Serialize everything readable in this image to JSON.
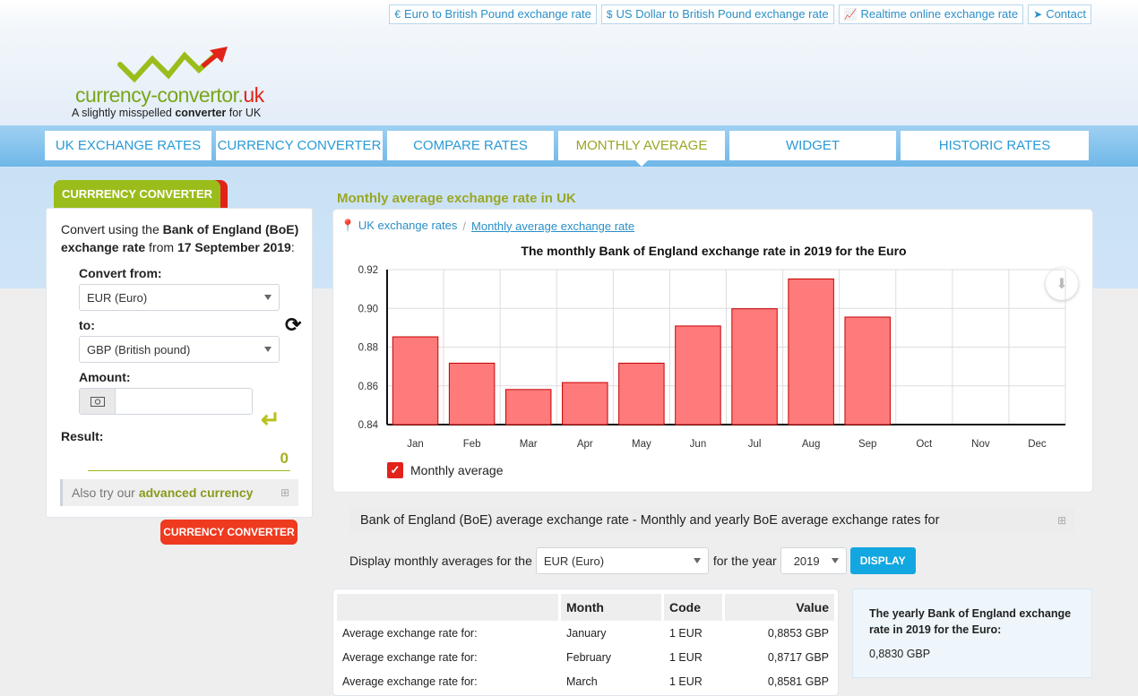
{
  "top_links": [
    {
      "icon": "euro-icon",
      "glyph": "€",
      "label": "Euro to British Pound exchange rate"
    },
    {
      "icon": "dollar-icon",
      "glyph": "$",
      "label": "US Dollar to British Pound exchange rate"
    },
    {
      "icon": "line-chart-icon",
      "glyph": "📈",
      "label": "Realtime online exchange rate"
    },
    {
      "icon": "paper-plane-icon",
      "glyph": "➤",
      "label": "Contact"
    }
  ],
  "logo": {
    "name_main": "currency-convertor.",
    "name_tld": "uk",
    "tagline_pre": "A slightly misspelled ",
    "tagline_bold": "converter",
    "tagline_post": " for UK"
  },
  "nav": [
    {
      "label": "UK EXCHANGE RATES",
      "active": false
    },
    {
      "label": "CURRENCY CONVERTER",
      "active": false
    },
    {
      "label": "COMPARE RATES",
      "active": false
    },
    {
      "label": "MONTHLY AVERAGE",
      "active": true
    },
    {
      "label": "WIDGET",
      "active": false
    },
    {
      "label": "HISTORIC RATES",
      "active": false
    }
  ],
  "sidebar": {
    "tab_label": "CURRRENCY CONVERTER",
    "intro_pre": "Convert using the ",
    "intro_bold1": "Bank of England (BoE) exchange rate",
    "intro_mid": " from ",
    "intro_bold2": "17 September 2019",
    "intro_post": ":",
    "from_label": "Convert from:",
    "from_value": "EUR (Euro)",
    "to_label": "to:",
    "to_value": "GBP (British pound)",
    "amount_label": "Amount:",
    "amount_value": "",
    "amount_placeholder": "",
    "result_label": "Result:",
    "result_value": "0",
    "advanced_pre": "Also try our",
    "advanced_bold": "advanced currency",
    "button_label": "CURRENCY CONVERTER"
  },
  "main": {
    "title": "Monthly average exchange rate in UK",
    "breadcrumb_home": "UK exchange rates",
    "breadcrumb_sep": "/",
    "breadcrumb_current": "Monthly average exchange rate",
    "section_title": "Bank of England (BoE) average exchange rate - Monthly and yearly BoE average exchange rates for",
    "display_pre": "Display monthly averages for the",
    "display_currency": "EUR (Euro)",
    "display_mid": "for the year",
    "display_year": "2019",
    "display_button": "DISPLAY",
    "table_headers": {
      "label": "",
      "month": "Month",
      "code": "Code",
      "value": "Value"
    },
    "table_rows": [
      {
        "label": "Average exchange rate for:",
        "month": "January",
        "code": "1 EUR",
        "value": "0,8853 GBP"
      },
      {
        "label": "Average exchange rate for:",
        "month": "February",
        "code": "1 EUR",
        "value": "0,8717 GBP"
      },
      {
        "label": "Average exchange rate for:",
        "month": "March",
        "code": "1 EUR",
        "value": "0,8581 GBP"
      }
    ],
    "yearly_title": "The yearly Bank of England exchange rate in 2019 for the Euro:",
    "yearly_value": "0,8830 GBP"
  },
  "colors": {
    "bar_fill": "#ff7b7b",
    "bar_stroke": "#c40000",
    "accent_green": "#9bbd1c",
    "accent_blue": "#2a9ad6",
    "accent_red": "#e2231a"
  },
  "chart_data": {
    "type": "bar",
    "title": "The monthly Bank of England exchange rate in 2019 for the Euro",
    "categories": [
      "Jan",
      "Feb",
      "Mar",
      "Apr",
      "May",
      "Jun",
      "Jul",
      "Aug",
      "Sep",
      "Oct",
      "Nov",
      "Dec"
    ],
    "series": [
      {
        "name": "Monthly average",
        "values": [
          0.8853,
          0.8717,
          0.8581,
          0.8617,
          0.8717,
          0.8909,
          0.8998,
          0.9152,
          0.8955,
          null,
          null,
          null
        ]
      }
    ],
    "ylim": [
      0.84,
      0.92
    ],
    "yticks": [
      0.84,
      0.86,
      0.88,
      0.9,
      0.92
    ],
    "ytick_labels": [
      "0.84",
      "0.86",
      "0.88",
      "0.90",
      "0.92"
    ],
    "grid": true,
    "legend": "bottom-left"
  }
}
